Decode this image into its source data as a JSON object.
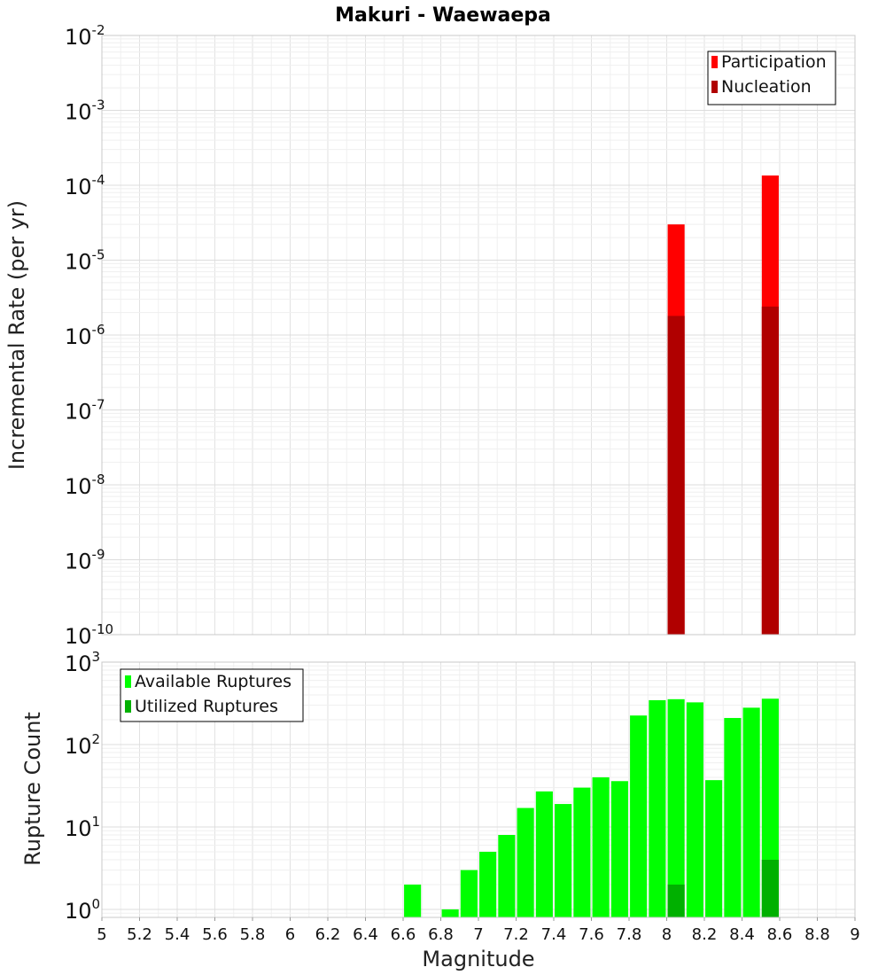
{
  "chart_data": [
    {
      "type": "bar",
      "title": "Makuri - Waewaepa",
      "ylabel": "Incremental Rate (per yr)",
      "xlabel": "",
      "xlim": [
        5,
        9
      ],
      "yscale": "log",
      "ylim": [
        1e-10,
        0.01
      ],
      "y_tick_exponents": [
        "-2",
        "-3",
        "-4",
        "-5",
        "-6",
        "-7",
        "-8",
        "-9",
        "-10"
      ],
      "grid": true,
      "legend_position": "top-right",
      "bar_width": 0.09,
      "series": [
        {
          "name": "Participation",
          "color": "#ff0000",
          "points": [
            {
              "x": 8.05,
              "y": 3e-05
            },
            {
              "x": 8.55,
              "y": 0.000135
            }
          ]
        },
        {
          "name": "Nucleation",
          "color": "#b00000",
          "points": [
            {
              "x": 8.05,
              "y": 1.8e-06
            },
            {
              "x": 8.55,
              "y": 2.4e-06
            }
          ]
        }
      ]
    },
    {
      "type": "bar",
      "title": "",
      "ylabel": "Rupture Count",
      "xlabel": "Magnitude",
      "xlim": [
        5,
        9
      ],
      "x_ticks": [
        "5",
        "5.2",
        "5.4",
        "5.6",
        "5.8",
        "6",
        "6.2",
        "6.4",
        "6.6",
        "6.8",
        "7",
        "7.2",
        "7.4",
        "7.6",
        "7.8",
        "8",
        "8.2",
        "8.4",
        "8.6",
        "8.8",
        "9"
      ],
      "yscale": "log",
      "ylim": [
        0.8,
        1000
      ],
      "y_tick_exponents": [
        "3",
        "2",
        "1",
        "0"
      ],
      "grid": true,
      "legend_position": "top-left",
      "bar_width": 0.09,
      "series": [
        {
          "name": "Available Ruptures",
          "color": "#00ff00",
          "points": [
            {
              "x": 6.65,
              "y": 2
            },
            {
              "x": 6.85,
              "y": 1
            },
            {
              "x": 6.95,
              "y": 3
            },
            {
              "x": 7.05,
              "y": 5
            },
            {
              "x": 7.15,
              "y": 8
            },
            {
              "x": 7.25,
              "y": 17
            },
            {
              "x": 7.35,
              "y": 27
            },
            {
              "x": 7.45,
              "y": 19
            },
            {
              "x": 7.55,
              "y": 30
            },
            {
              "x": 7.65,
              "y": 40
            },
            {
              "x": 7.75,
              "y": 36
            },
            {
              "x": 7.85,
              "y": 225
            },
            {
              "x": 7.95,
              "y": 345
            },
            {
              "x": 8.05,
              "y": 355
            },
            {
              "x": 8.15,
              "y": 325
            },
            {
              "x": 8.25,
              "y": 37
            },
            {
              "x": 8.35,
              "y": 210
            },
            {
              "x": 8.45,
              "y": 280
            },
            {
              "x": 8.55,
              "y": 360
            }
          ]
        },
        {
          "name": "Utilized Ruptures",
          "color": "#00b000",
          "points": [
            {
              "x": 8.05,
              "y": 2
            },
            {
              "x": 8.55,
              "y": 4
            }
          ]
        }
      ]
    }
  ]
}
